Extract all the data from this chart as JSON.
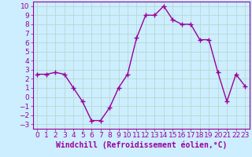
{
  "x": [
    0,
    1,
    2,
    3,
    4,
    5,
    6,
    7,
    8,
    9,
    10,
    11,
    12,
    13,
    14,
    15,
    16,
    17,
    18,
    19,
    20,
    21,
    22,
    23
  ],
  "y": [
    2.5,
    2.5,
    2.7,
    2.5,
    1.0,
    -0.5,
    -2.6,
    -2.6,
    -1.2,
    1.0,
    2.5,
    6.5,
    9.0,
    9.0,
    10.0,
    8.5,
    8.0,
    8.0,
    6.3,
    6.3,
    2.7,
    -0.5,
    2.5,
    1.2
  ],
  "line_color": "#990099",
  "marker": "+",
  "marker_size": 4,
  "bg_color": "#cceeff",
  "grid_color": "#aaddcc",
  "xlabel": "Windchill (Refroidissement éolien,°C)",
  "xlabel_fontsize": 7,
  "ylim": [
    -3.5,
    10.5
  ],
  "xlim": [
    -0.5,
    23.5
  ],
  "yticks": [
    -3,
    -2,
    -1,
    0,
    1,
    2,
    3,
    4,
    5,
    6,
    7,
    8,
    9,
    10
  ],
  "xticks": [
    0,
    1,
    2,
    3,
    4,
    5,
    6,
    7,
    8,
    9,
    10,
    11,
    12,
    13,
    14,
    15,
    16,
    17,
    18,
    19,
    20,
    21,
    22,
    23
  ],
  "tick_fontsize": 6.5,
  "line_width": 1.0
}
